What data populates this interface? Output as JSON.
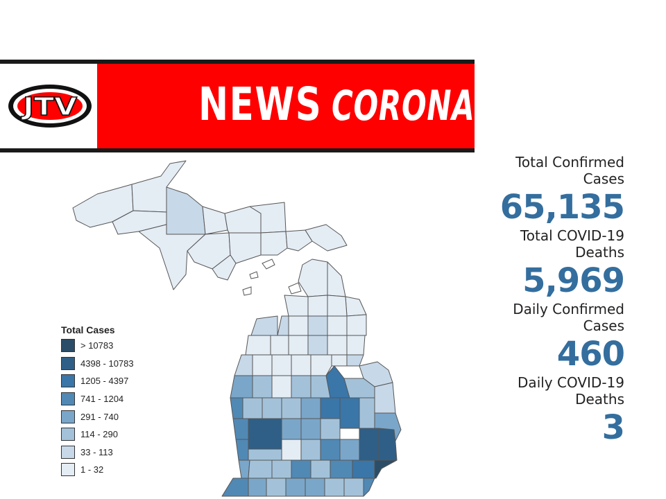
{
  "banner": {
    "logo_text": "JTV",
    "news_label": "NEWS",
    "topic_label": "CORONAVIRUS",
    "colors": {
      "red": "#ff0000",
      "dark": "#1a1a1a",
      "white": "#ffffff"
    }
  },
  "map": {
    "region": "Michigan",
    "legend": {
      "title": "Total Cases",
      "items": [
        {
          "label": "> 10783",
          "color": "#2b4d68"
        },
        {
          "label": "4398 - 10783",
          "color": "#2f5f86"
        },
        {
          "label": "1205 - 4397",
          "color": "#3a76a8"
        },
        {
          "label": "741 - 1204",
          "color": "#5189b5"
        },
        {
          "label": "291 - 740",
          "color": "#7aa6c9"
        },
        {
          "label": "114 - 290",
          "color": "#a3c2da"
        },
        {
          "label": "33 - 113",
          "color": "#c7d8e8"
        },
        {
          "label": "1 - 32",
          "color": "#e4ecf4"
        }
      ]
    }
  },
  "stats": {
    "confirmed_label_1": "Total Confirmed",
    "confirmed_label_2": "Cases",
    "confirmed_value": "65,135",
    "deaths_label_1": "Total COVID-19",
    "deaths_label_2": "Deaths",
    "deaths_value": "5,969",
    "daily_cases_label_1": "Daily Confirmed",
    "daily_cases_label_2": "Cases",
    "daily_cases_value": "460",
    "daily_deaths_label_1": "Daily COVID-19",
    "daily_deaths_label_2": "Deaths",
    "daily_deaths_value": "3",
    "value_color": "#336e9e"
  }
}
